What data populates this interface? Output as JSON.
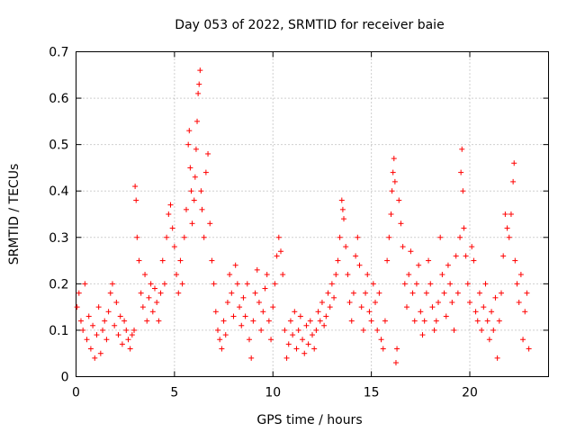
{
  "chart_data": {
    "type": "scatter",
    "title": "Day 053 of 2022, SRMTID for receiver baie",
    "xlabel": "GPS time / hours",
    "ylabel": "SRMTID / TECUs",
    "xlim": [
      0,
      24
    ],
    "ylim": [
      0,
      0.7
    ],
    "xticks": [
      0,
      5,
      10,
      15,
      20
    ],
    "xtick_labels": [
      "0",
      "5",
      "10",
      "15",
      "20"
    ],
    "yticks": [
      0,
      0.1,
      0.2,
      0.3,
      0.4,
      0.5,
      0.6,
      0.7
    ],
    "ytick_labels": [
      "0",
      "0.1",
      "0.2",
      "0.3",
      "0.4",
      "0.5",
      "0.6",
      "0.7"
    ],
    "grid": true,
    "marker": "plus",
    "color": "#ff0000",
    "series": [
      {
        "name": "SRMTID",
        "points": [
          [
            0.05,
            0.15
          ],
          [
            0.15,
            0.18
          ],
          [
            0.25,
            0.12
          ],
          [
            0.35,
            0.1
          ],
          [
            0.45,
            0.2
          ],
          [
            0.55,
            0.08
          ],
          [
            0.65,
            0.13
          ],
          [
            0.75,
            0.06
          ],
          [
            0.85,
            0.11
          ],
          [
            0.95,
            0.04
          ],
          [
            1.05,
            0.09
          ],
          [
            1.15,
            0.15
          ],
          [
            1.25,
            0.05
          ],
          [
            1.35,
            0.1
          ],
          [
            1.45,
            0.12
          ],
          [
            1.55,
            0.08
          ],
          [
            1.65,
            0.14
          ],
          [
            1.75,
            0.18
          ],
          [
            1.85,
            0.2
          ],
          [
            1.95,
            0.11
          ],
          [
            2.05,
            0.16
          ],
          [
            2.15,
            0.09
          ],
          [
            2.25,
            0.13
          ],
          [
            2.35,
            0.07
          ],
          [
            2.45,
            0.12
          ],
          [
            2.55,
            0.1
          ],
          [
            2.65,
            0.08
          ],
          [
            2.75,
            0.06
          ],
          [
            2.85,
            0.09
          ],
          [
            2.95,
            0.1
          ],
          [
            3.0,
            0.41
          ],
          [
            3.05,
            0.38
          ],
          [
            3.1,
            0.3
          ],
          [
            3.2,
            0.25
          ],
          [
            3.3,
            0.18
          ],
          [
            3.4,
            0.15
          ],
          [
            3.5,
            0.22
          ],
          [
            3.6,
            0.12
          ],
          [
            3.7,
            0.17
          ],
          [
            3.8,
            0.2
          ],
          [
            3.9,
            0.14
          ],
          [
            4.0,
            0.19
          ],
          [
            4.1,
            0.16
          ],
          [
            4.2,
            0.12
          ],
          [
            4.3,
            0.18
          ],
          [
            4.4,
            0.25
          ],
          [
            4.5,
            0.2
          ],
          [
            4.6,
            0.3
          ],
          [
            4.7,
            0.35
          ],
          [
            4.8,
            0.37
          ],
          [
            4.9,
            0.32
          ],
          [
            5.0,
            0.28
          ],
          [
            5.1,
            0.22
          ],
          [
            5.2,
            0.18
          ],
          [
            5.3,
            0.25
          ],
          [
            5.4,
            0.2
          ],
          [
            5.5,
            0.3
          ],
          [
            5.6,
            0.36
          ],
          [
            5.7,
            0.5
          ],
          [
            5.75,
            0.53
          ],
          [
            5.8,
            0.45
          ],
          [
            5.85,
            0.4
          ],
          [
            5.9,
            0.33
          ],
          [
            6.0,
            0.38
          ],
          [
            6.05,
            0.43
          ],
          [
            6.1,
            0.49
          ],
          [
            6.15,
            0.55
          ],
          [
            6.2,
            0.61
          ],
          [
            6.25,
            0.63
          ],
          [
            6.3,
            0.66
          ],
          [
            6.35,
            0.4
          ],
          [
            6.4,
            0.36
          ],
          [
            6.5,
            0.3
          ],
          [
            6.6,
            0.44
          ],
          [
            6.7,
            0.48
          ],
          [
            6.8,
            0.33
          ],
          [
            6.9,
            0.25
          ],
          [
            7.0,
            0.2
          ],
          [
            7.1,
            0.14
          ],
          [
            7.2,
            0.1
          ],
          [
            7.3,
            0.08
          ],
          [
            7.4,
            0.06
          ],
          [
            7.5,
            0.12
          ],
          [
            7.6,
            0.09
          ],
          [
            7.7,
            0.16
          ],
          [
            7.8,
            0.22
          ],
          [
            7.9,
            0.18
          ],
          [
            8.0,
            0.13
          ],
          [
            8.1,
            0.24
          ],
          [
            8.2,
            0.2
          ],
          [
            8.3,
            0.15
          ],
          [
            8.4,
            0.11
          ],
          [
            8.5,
            0.17
          ],
          [
            8.6,
            0.13
          ],
          [
            8.7,
            0.2
          ],
          [
            8.8,
            0.08
          ],
          [
            8.9,
            0.04
          ],
          [
            9.0,
            0.12
          ],
          [
            9.1,
            0.18
          ],
          [
            9.2,
            0.23
          ],
          [
            9.3,
            0.16
          ],
          [
            9.4,
            0.1
          ],
          [
            9.5,
            0.14
          ],
          [
            9.6,
            0.19
          ],
          [
            9.7,
            0.22
          ],
          [
            9.8,
            0.12
          ],
          [
            9.9,
            0.08
          ],
          [
            10.0,
            0.15
          ],
          [
            10.1,
            0.2
          ],
          [
            10.2,
            0.26
          ],
          [
            10.3,
            0.3
          ],
          [
            10.4,
            0.27
          ],
          [
            10.5,
            0.22
          ],
          [
            10.6,
            0.1
          ],
          [
            10.7,
            0.04
          ],
          [
            10.8,
            0.07
          ],
          [
            10.9,
            0.12
          ],
          [
            11.0,
            0.09
          ],
          [
            11.1,
            0.14
          ],
          [
            11.2,
            0.06
          ],
          [
            11.3,
            0.1
          ],
          [
            11.4,
            0.13
          ],
          [
            11.5,
            0.08
          ],
          [
            11.6,
            0.05
          ],
          [
            11.7,
            0.11
          ],
          [
            11.8,
            0.07
          ],
          [
            11.9,
            0.12
          ],
          [
            12.0,
            0.09
          ],
          [
            12.1,
            0.06
          ],
          [
            12.2,
            0.1
          ],
          [
            12.3,
            0.14
          ],
          [
            12.4,
            0.12
          ],
          [
            12.5,
            0.16
          ],
          [
            12.6,
            0.11
          ],
          [
            12.7,
            0.13
          ],
          [
            12.8,
            0.18
          ],
          [
            12.9,
            0.15
          ],
          [
            13.0,
            0.2
          ],
          [
            13.1,
            0.17
          ],
          [
            13.2,
            0.22
          ],
          [
            13.3,
            0.25
          ],
          [
            13.4,
            0.3
          ],
          [
            13.5,
            0.38
          ],
          [
            13.55,
            0.36
          ],
          [
            13.6,
            0.34
          ],
          [
            13.7,
            0.28
          ],
          [
            13.8,
            0.22
          ],
          [
            13.9,
            0.16
          ],
          [
            14.0,
            0.12
          ],
          [
            14.1,
            0.18
          ],
          [
            14.2,
            0.26
          ],
          [
            14.3,
            0.3
          ],
          [
            14.4,
            0.24
          ],
          [
            14.5,
            0.15
          ],
          [
            14.6,
            0.1
          ],
          [
            14.7,
            0.18
          ],
          [
            14.8,
            0.22
          ],
          [
            14.9,
            0.14
          ],
          [
            15.0,
            0.12
          ],
          [
            15.1,
            0.2
          ],
          [
            15.2,
            0.16
          ],
          [
            15.3,
            0.1
          ],
          [
            15.4,
            0.18
          ],
          [
            15.5,
            0.08
          ],
          [
            15.6,
            0.06
          ],
          [
            15.7,
            0.12
          ],
          [
            15.8,
            0.25
          ],
          [
            15.9,
            0.3
          ],
          [
            16.0,
            0.35
          ],
          [
            16.05,
            0.4
          ],
          [
            16.1,
            0.44
          ],
          [
            16.15,
            0.47
          ],
          [
            16.2,
            0.42
          ],
          [
            16.25,
            0.03
          ],
          [
            16.3,
            0.06
          ],
          [
            16.4,
            0.38
          ],
          [
            16.5,
            0.33
          ],
          [
            16.6,
            0.28
          ],
          [
            16.7,
            0.2
          ],
          [
            16.8,
            0.15
          ],
          [
            16.9,
            0.22
          ],
          [
            17.0,
            0.27
          ],
          [
            17.1,
            0.18
          ],
          [
            17.2,
            0.12
          ],
          [
            17.3,
            0.2
          ],
          [
            17.4,
            0.24
          ],
          [
            17.5,
            0.14
          ],
          [
            17.6,
            0.09
          ],
          [
            17.7,
            0.12
          ],
          [
            17.8,
            0.18
          ],
          [
            17.9,
            0.25
          ],
          [
            18.0,
            0.2
          ],
          [
            18.1,
            0.15
          ],
          [
            18.2,
            0.1
          ],
          [
            18.3,
            0.12
          ],
          [
            18.4,
            0.16
          ],
          [
            18.5,
            0.3
          ],
          [
            18.6,
            0.22
          ],
          [
            18.7,
            0.18
          ],
          [
            18.8,
            0.13
          ],
          [
            18.9,
            0.24
          ],
          [
            19.0,
            0.2
          ],
          [
            19.1,
            0.16
          ],
          [
            19.2,
            0.1
          ],
          [
            19.3,
            0.26
          ],
          [
            19.4,
            0.18
          ],
          [
            19.5,
            0.3
          ],
          [
            19.55,
            0.44
          ],
          [
            19.6,
            0.49
          ],
          [
            19.65,
            0.4
          ],
          [
            19.7,
            0.32
          ],
          [
            19.8,
            0.26
          ],
          [
            19.9,
            0.2
          ],
          [
            20.0,
            0.16
          ],
          [
            20.1,
            0.28
          ],
          [
            20.2,
            0.25
          ],
          [
            20.3,
            0.14
          ],
          [
            20.4,
            0.12
          ],
          [
            20.5,
            0.18
          ],
          [
            20.6,
            0.1
          ],
          [
            20.7,
            0.15
          ],
          [
            20.8,
            0.2
          ],
          [
            20.9,
            0.12
          ],
          [
            21.0,
            0.08
          ],
          [
            21.1,
            0.14
          ],
          [
            21.2,
            0.1
          ],
          [
            21.3,
            0.17
          ],
          [
            21.4,
            0.04
          ],
          [
            21.5,
            0.12
          ],
          [
            21.6,
            0.18
          ],
          [
            21.7,
            0.26
          ],
          [
            21.8,
            0.35
          ],
          [
            21.9,
            0.32
          ],
          [
            22.0,
            0.3
          ],
          [
            22.1,
            0.35
          ],
          [
            22.2,
            0.42
          ],
          [
            22.25,
            0.46
          ],
          [
            22.3,
            0.25
          ],
          [
            22.4,
            0.2
          ],
          [
            22.5,
            0.16
          ],
          [
            22.6,
            0.22
          ],
          [
            22.7,
            0.08
          ],
          [
            22.8,
            0.14
          ],
          [
            22.9,
            0.18
          ],
          [
            23.0,
            0.06
          ]
        ]
      }
    ]
  }
}
